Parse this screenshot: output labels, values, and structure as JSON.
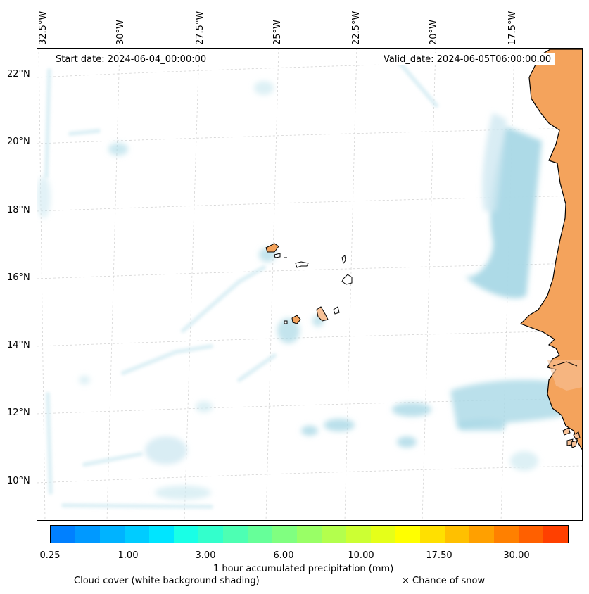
{
  "map": {
    "start_date": "Start date: 2024-06-04_00:00:00",
    "valid_date": "Valid_date: 2024-06-05T06:00:00.00",
    "lon_labels": [
      "32.5°W",
      "30°W",
      "27.5°W",
      "25°W",
      "22.5°W",
      "20°W",
      "17.5°W"
    ],
    "lat_labels": [
      "22°N",
      "20°N",
      "18°N",
      "16°N",
      "14°N",
      "12°N",
      "10°N"
    ],
    "colors": {
      "land_dry": "#f4a35c",
      "island_fill": "#f7c197",
      "cloud": "#a9d8e6",
      "coast": "#000000",
      "grid": "#cccccc"
    }
  },
  "colorbar": {
    "colors": [
      "#0080ff",
      "#0099ff",
      "#00b3ff",
      "#00ccff",
      "#00e5ff",
      "#19ffe6",
      "#33ffcc",
      "#4dffb3",
      "#66ff99",
      "#80ff80",
      "#99ff66",
      "#b3ff4d",
      "#ccff33",
      "#e5ff19",
      "#ffff00",
      "#ffe000",
      "#ffc000",
      "#ffa000",
      "#ff8000",
      "#ff6000",
      "#ff4000"
    ],
    "tick_labels": [
      "0.25",
      "1.00",
      "3.00",
      "6.00",
      "10.00",
      "17.50",
      "30.00"
    ],
    "label": "1 hour accumulated precipitation (mm)"
  },
  "legend": {
    "cloud_cover": "Cloud cover (white background shading)",
    "snow": "× Chance of snow"
  }
}
